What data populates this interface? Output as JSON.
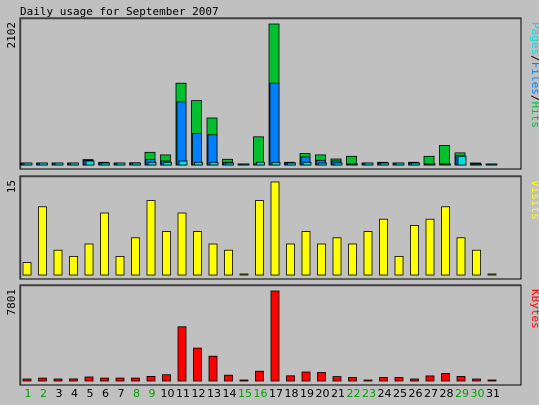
{
  "chart_data": {
    "type": "bar",
    "title": "Daily usage for September 2007",
    "days": [
      "1",
      "2",
      "3",
      "4",
      "5",
      "6",
      "7",
      "8",
      "9",
      "10",
      "11",
      "12",
      "13",
      "14",
      "15",
      "16",
      "17",
      "18",
      "19",
      "20",
      "21",
      "22",
      "23",
      "24",
      "25",
      "26",
      "27",
      "28",
      "29",
      "30",
      "31"
    ],
    "weekend_days": [
      1,
      2,
      8,
      9,
      15,
      16,
      22,
      23,
      29,
      30
    ],
    "panels": [
      {
        "id": "hits",
        "max_label": "2102",
        "ymax": 2102,
        "legend": [
          "Pages",
          "/",
          "Files",
          "/",
          "Hits"
        ],
        "series": [
          {
            "name": "Hits",
            "color": "#00c030",
            "values": [
              10,
              25,
              12,
              25,
              80,
              40,
              20,
              35,
              190,
              150,
              1220,
              960,
              700,
              85,
              0,
              420,
              2102,
              40,
              170,
              150,
              90,
              130,
              20,
              40,
              20,
              40,
              130,
              290,
              180,
              20,
              0
            ]
          },
          {
            "name": "Files",
            "color": "#0080ff",
            "values": [
              5,
              20,
              8,
              18,
              70,
              30,
              15,
              25,
              80,
              60,
              940,
              470,
              450,
              40,
              0,
              0,
              1220,
              25,
              120,
              70,
              60,
              0,
              10,
              20,
              10,
              25,
              0,
              0,
              140,
              0,
              0
            ]
          },
          {
            "name": "Pages",
            "color": "#00e0e0",
            "values": [
              3,
              15,
              5,
              12,
              60,
              25,
              10,
              20,
              40,
              40,
              60,
              40,
              40,
              30,
              0,
              40,
              40,
              20,
              40,
              30,
              20,
              0,
              5,
              10,
              5,
              10,
              0,
              0,
              130,
              0,
              0
            ]
          }
        ]
      },
      {
        "id": "visits",
        "max_label": "15",
        "ymax": 15,
        "legend": [
          "Visits"
        ],
        "series": [
          {
            "name": "Visits",
            "color": "#ffff00",
            "values": [
              2,
              11,
              4,
              3,
              5,
              10,
              3,
              6,
              12,
              7,
              10,
              7,
              5,
              4,
              0,
              12,
              15,
              5,
              7,
              5,
              6,
              5,
              7,
              9,
              3,
              8,
              9,
              11,
              6,
              4,
              0
            ]
          }
        ]
      },
      {
        "id": "kbytes",
        "max_label": "7801",
        "ymax": 7801,
        "legend": [
          "KBytes"
        ],
        "series": [
          {
            "name": "KBytes",
            "color": "#ff0000",
            "values": [
              120,
              250,
              100,
              180,
              350,
              250,
              250,
              250,
              400,
              550,
              4700,
              2850,
              2150,
              500,
              0,
              850,
              7801,
              450,
              780,
              740,
              380,
              300,
              0,
              300,
              300,
              100,
              440,
              650,
              400,
              120,
              0
            ]
          }
        ]
      }
    ]
  },
  "colors": {
    "background": "#c0c0c0",
    "weekend_label": "#00a000",
    "weekday_label": "#000000",
    "outline": "#000000"
  }
}
